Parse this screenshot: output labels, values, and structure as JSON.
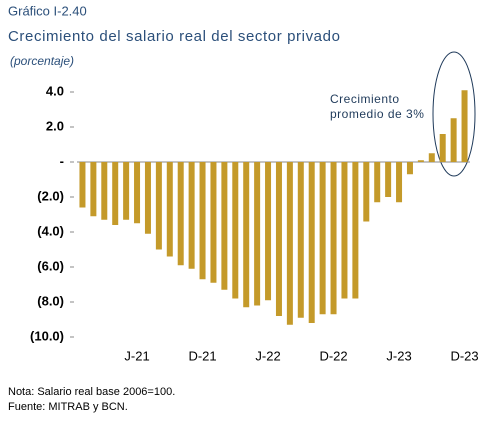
{
  "chart_data": {
    "type": "bar",
    "title": "Gráfico I-2.40",
    "subtitle": "Crecimiento del salario real del sector privado",
    "unit_label": "(porcentaje)",
    "categories": [
      null,
      null,
      null,
      null,
      null,
      "J-21",
      null,
      null,
      null,
      null,
      null,
      "D-21",
      null,
      null,
      null,
      null,
      null,
      "J-22",
      null,
      null,
      null,
      null,
      null,
      "D-22",
      null,
      null,
      null,
      null,
      null,
      "J-23",
      null,
      null,
      null,
      null,
      null,
      "D-23"
    ],
    "values": [
      -2.6,
      -3.1,
      -3.3,
      -3.6,
      -3.3,
      -3.5,
      -4.1,
      -5.0,
      -5.4,
      -5.9,
      -6.1,
      -6.7,
      -6.9,
      -7.3,
      -7.8,
      -8.3,
      -8.2,
      -7.9,
      -8.8,
      -9.3,
      -8.9,
      -9.2,
      -8.7,
      -8.7,
      -7.8,
      -7.8,
      -3.4,
      -2.3,
      -2.0,
      -2.3,
      -0.7,
      0.1,
      0.5,
      1.6,
      2.5,
      4.1
    ],
    "color": "#c49a2a",
    "ylim": [
      -10,
      4
    ],
    "yticks": [
      {
        "value": 4,
        "label": "4.0"
      },
      {
        "value": 2,
        "label": "2.0"
      },
      {
        "value": 0,
        "label": "-"
      },
      {
        "value": -2,
        "label": "(2.0)"
      },
      {
        "value": -4,
        "label": "(4.0)"
      },
      {
        "value": -6,
        "label": "(6.0)"
      },
      {
        "value": -8,
        "label": "(8.0)"
      },
      {
        "value": -10,
        "label": "(10.0)"
      }
    ],
    "annotation": {
      "line1": "Crecimiento",
      "line2": "promedio de 3%"
    },
    "notes": [
      "Nota: Salario real base 2006=100.",
      "Fuente: MITRAB y BCN."
    ]
  }
}
